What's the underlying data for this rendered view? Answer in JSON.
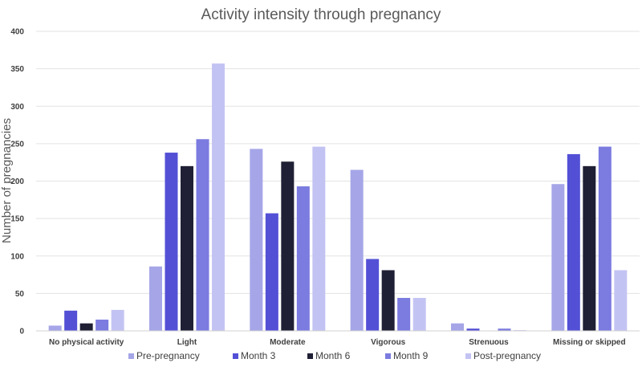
{
  "chart_data": {
    "type": "bar",
    "title": "Activity intensity through pregnancy",
    "xlabel": "",
    "ylabel": "Number of pregnancies",
    "ylim": [
      0,
      400
    ],
    "yticks": [
      0,
      50,
      100,
      150,
      200,
      250,
      300,
      350,
      400
    ],
    "grid": true,
    "legend_position": "bottom",
    "categories": [
      "No physical activity",
      "Light",
      "Moderate",
      "Vigorous",
      "Strenuous",
      "Missing or skipped"
    ],
    "series": [
      {
        "name": "Pre-pregnancy",
        "color": "#a5a5e8",
        "values": [
          7,
          86,
          243,
          215,
          10,
          196
        ]
      },
      {
        "name": "Month 3",
        "color": "#5350d6",
        "values": [
          27,
          238,
          157,
          96,
          3,
          236
        ]
      },
      {
        "name": "Month 6",
        "color": "#1f1f35",
        "values": [
          10,
          220,
          226,
          81,
          0,
          220
        ]
      },
      {
        "name": "Month 9",
        "color": "#7b7be0",
        "values": [
          15,
          256,
          193,
          44,
          3,
          246
        ]
      },
      {
        "name": "Post-pregnancy",
        "color": "#c3c3f3",
        "values": [
          28,
          357,
          246,
          44,
          1,
          81
        ]
      }
    ]
  }
}
